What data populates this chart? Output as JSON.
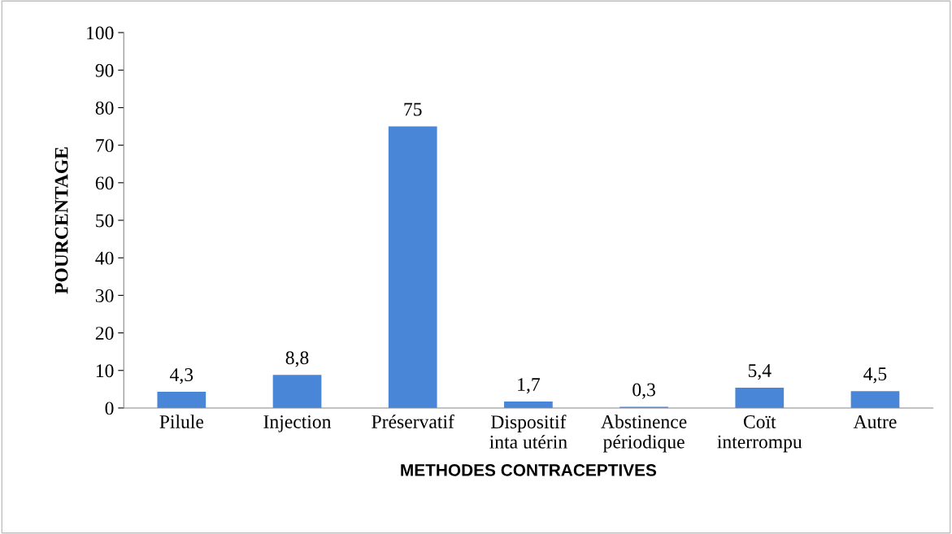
{
  "chart_data": {
    "type": "bar",
    "xlabel": "METHODES CONTRACEPTIVES",
    "ylabel": "POURCENTAGE",
    "categories": [
      "Pilule",
      "Injection",
      "Préservatif",
      "Dispositif\ninta utérin",
      "Abstinence\npériodique",
      "Coït\ninterrompu",
      "Autre"
    ],
    "values": [
      4.3,
      8.8,
      75,
      1.7,
      0.3,
      5.4,
      4.5
    ],
    "value_labels": [
      "4,3",
      "8,8",
      "75",
      "1,7",
      "0,3",
      "5,4",
      "4,5"
    ],
    "color": "#4a86d8",
    "ylim": [
      0,
      100
    ],
    "yticks": [
      0,
      10,
      20,
      30,
      40,
      50,
      60,
      70,
      80,
      90,
      100
    ],
    "grid": false,
    "legend": false
  }
}
